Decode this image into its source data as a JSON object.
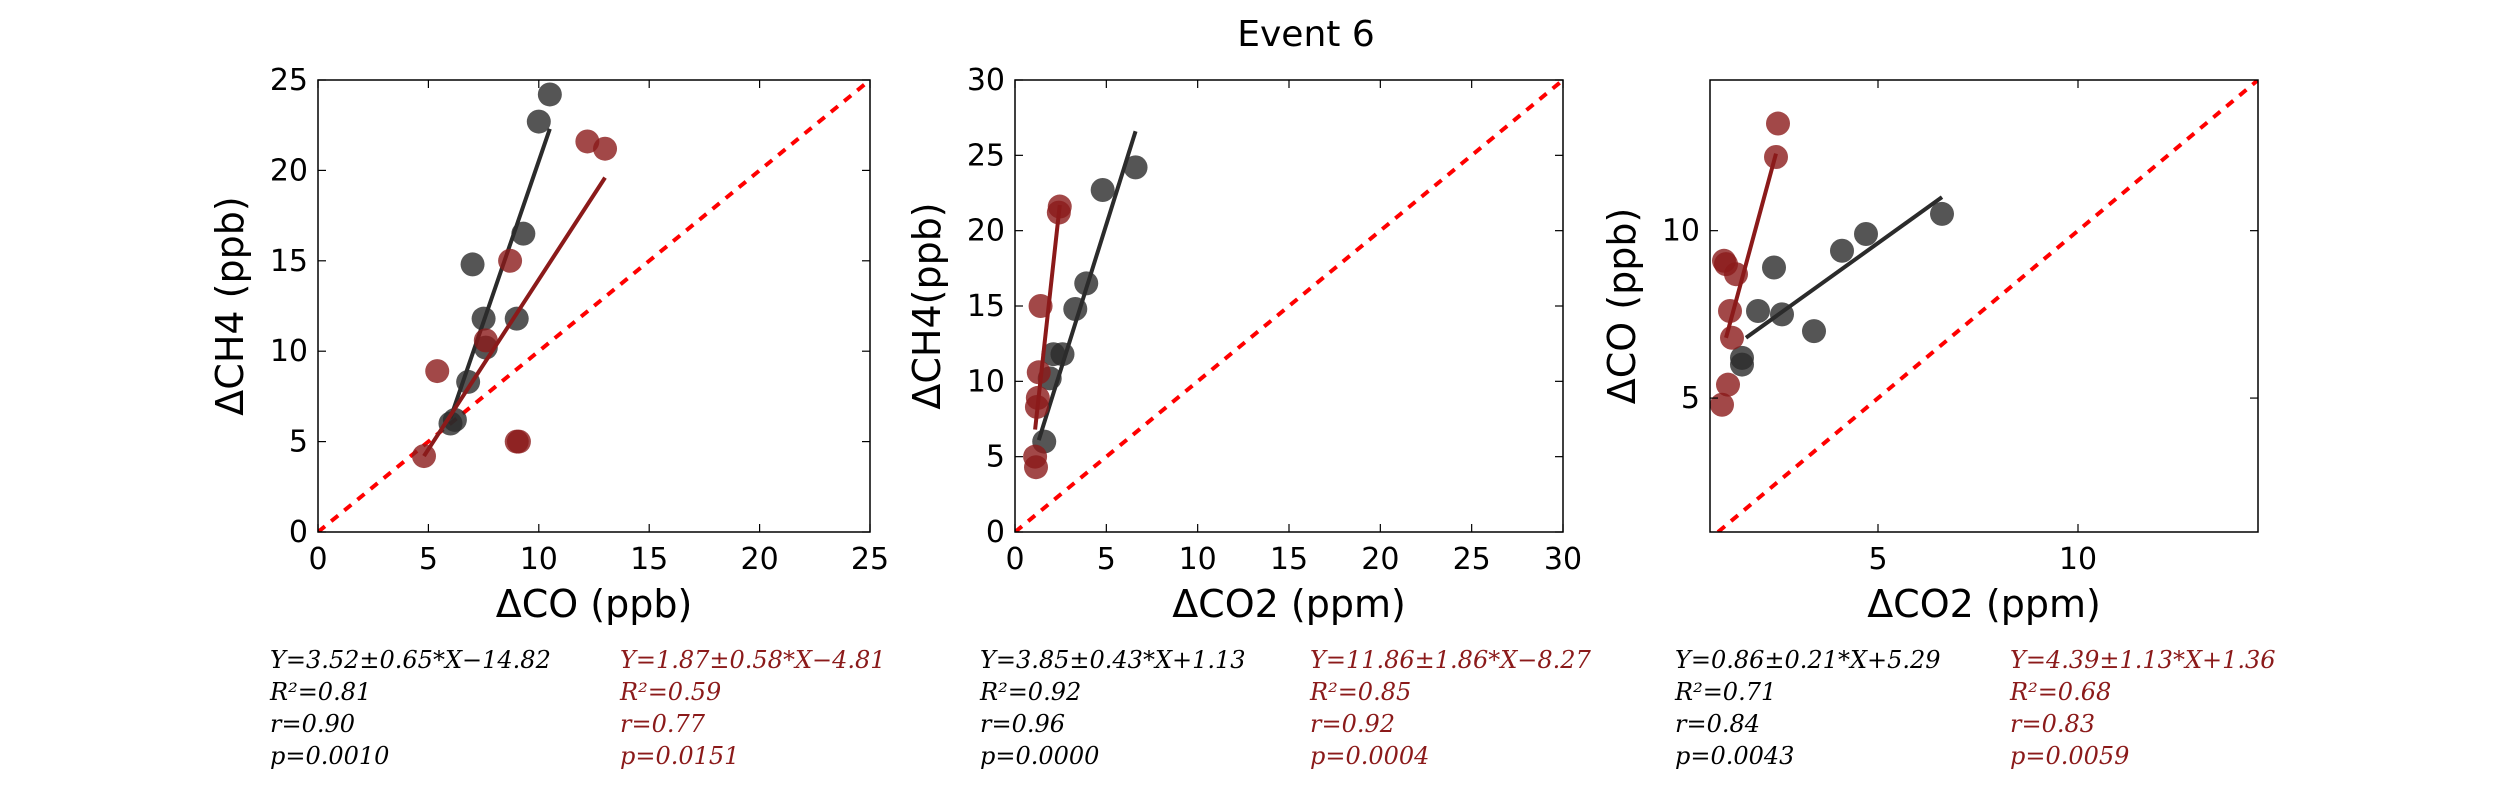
{
  "figure": {
    "title": "Event 6"
  },
  "colors": {
    "black_series": "#2b2b2b",
    "red_series": "#8b1a1a",
    "identity_line": "#ff0000",
    "red_text": "#8b1a1a",
    "black_text": "#000000"
  },
  "chart_data": [
    {
      "type": "scatter",
      "xlabel": "ΔCO (ppb)",
      "ylabel": "ΔCH4 (ppb)",
      "xlim": [
        0,
        25
      ],
      "ylim": [
        0,
        25
      ],
      "xticks": [
        "0",
        "5",
        "10",
        "15",
        "20",
        "25"
      ],
      "yticks": [
        "0",
        "5",
        "10",
        "15",
        "20",
        "25"
      ],
      "grid": false,
      "identity_line": true,
      "series": [
        {
          "color": "black",
          "points": [
            [
              6.0,
              6.0
            ],
            [
              6.2,
              6.2
            ],
            [
              6.8,
              8.3
            ],
            [
              7.0,
              14.8
            ],
            [
              7.5,
              11.8
            ],
            [
              7.6,
              10.2
            ],
            [
              9.0,
              11.8
            ],
            [
              9.3,
              16.5
            ],
            [
              10.0,
              22.7
            ],
            [
              10.5,
              24.2
            ]
          ],
          "fit_line": [
            [
              6.0,
              6.3
            ],
            [
              10.5,
              22.3
            ]
          ],
          "stats": {
            "equation": "Y=3.52±0.65*X−14.82",
            "r2": "R²=0.81",
            "r": "r=0.90",
            "p": "p=0.0010"
          }
        },
        {
          "color": "red",
          "points": [
            [
              4.8,
              4.2
            ],
            [
              5.4,
              8.9
            ],
            [
              7.6,
              10.6
            ],
            [
              8.7,
              15.0
            ],
            [
              9.0,
              5.0
            ],
            [
              9.1,
              5.0
            ],
            [
              12.2,
              21.6
            ],
            [
              13.0,
              21.2
            ]
          ],
          "fit_line": [
            [
              4.8,
              4.2
            ],
            [
              13.0,
              19.6
            ]
          ],
          "stats": {
            "equation": "Y=1.87±0.58*X−4.81",
            "r2": "R²=0.59",
            "r": "r=0.77",
            "p": "p=0.0151"
          }
        }
      ]
    },
    {
      "type": "scatter",
      "xlabel": "ΔCO2 (ppm)",
      "ylabel": "ΔCH4(ppb)",
      "xlim": [
        0,
        30
      ],
      "ylim": [
        0,
        30
      ],
      "xticks": [
        "0",
        "5",
        "10",
        "15",
        "20",
        "25",
        "30"
      ],
      "yticks": [
        "0",
        "5",
        "10",
        "15",
        "20",
        "25",
        "30"
      ],
      "grid": false,
      "identity_line": true,
      "series": [
        {
          "color": "black",
          "points": [
            [
              1.6,
              6.0
            ],
            [
              1.9,
              10.2
            ],
            [
              2.1,
              11.8
            ],
            [
              2.6,
              11.8
            ],
            [
              3.3,
              14.8
            ],
            [
              3.9,
              16.5
            ],
            [
              4.8,
              22.7
            ],
            [
              6.6,
              24.2
            ]
          ],
          "fit_line": [
            [
              1.3,
              6.1
            ],
            [
              6.6,
              26.6
            ]
          ],
          "stats": {
            "equation": "Y=3.85±0.43*X+1.13",
            "r2": "R²=0.92",
            "r": "r=0.96",
            "p": "p=0.0000"
          }
        },
        {
          "color": "red",
          "points": [
            [
              1.1,
              5.0
            ],
            [
              1.15,
              4.3
            ],
            [
              1.2,
              8.3
            ],
            [
              1.25,
              8.9
            ],
            [
              1.3,
              10.6
            ],
            [
              1.4,
              15.0
            ],
            [
              2.4,
              21.2
            ],
            [
              2.45,
              21.6
            ]
          ],
          "fit_line": [
            [
              1.1,
              6.8
            ],
            [
              2.45,
              21.7
            ]
          ],
          "stats": {
            "equation": "Y=11.86±1.86*X−8.27",
            "r2": "R²=0.85",
            "r": "r=0.92",
            "p": "p=0.0004"
          }
        }
      ]
    },
    {
      "type": "scatter",
      "xlabel": "ΔCO2 (ppm)",
      "ylabel": "ΔCO (ppb)",
      "xlim": [
        0.8,
        14.5
      ],
      "ylim": [
        1.0,
        14.5
      ],
      "xticks": [
        "5",
        "10"
      ],
      "yticks": [
        "5",
        "10"
      ],
      "grid": false,
      "identity_line": true,
      "series": [
        {
          "color": "black",
          "points": [
            [
              1.6,
              6.0
            ],
            [
              1.6,
              6.2
            ],
            [
              2.0,
              7.6
            ],
            [
              2.4,
              8.9
            ],
            [
              2.6,
              7.5
            ],
            [
              3.4,
              7.0
            ],
            [
              4.1,
              9.4
            ],
            [
              4.7,
              9.9
            ],
            [
              6.6,
              10.5
            ]
          ],
          "fit_line": [
            [
              1.7,
              6.8
            ],
            [
              6.6,
              11.0
            ]
          ],
          "stats": {
            "equation": "Y=0.86±0.21*X+5.29",
            "r2": "R²=0.71",
            "r": "r=0.84",
            "p": "p=0.0043"
          }
        },
        {
          "color": "red",
          "points": [
            [
              1.1,
              4.8
            ],
            [
              1.15,
              9.1
            ],
            [
              1.2,
              9.0
            ],
            [
              1.25,
              5.4
            ],
            [
              1.3,
              7.6
            ],
            [
              1.35,
              6.8
            ],
            [
              1.45,
              8.7
            ],
            [
              2.45,
              12.2
            ],
            [
              2.5,
              13.2
            ]
          ],
          "fit_line": [
            [
              1.2,
              6.8
            ],
            [
              2.45,
              12.3
            ]
          ],
          "stats": {
            "equation": "Y=4.39±1.13*X+1.36",
            "r2": "R²=0.68",
            "r": "r=0.83",
            "p": "p=0.0059"
          }
        }
      ]
    }
  ]
}
